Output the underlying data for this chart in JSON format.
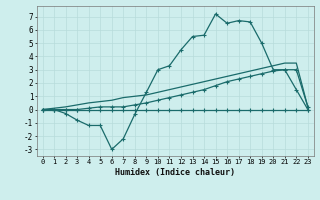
{
  "xlabel": "Humidex (Indice chaleur)",
  "bg_color": "#ceeeed",
  "grid_color": "#b8dcdb",
  "line_color": "#1a6b6b",
  "x_values": [
    0,
    1,
    2,
    3,
    4,
    5,
    6,
    7,
    8,
    9,
    10,
    11,
    12,
    13,
    14,
    15,
    16,
    17,
    18,
    19,
    20,
    21,
    22,
    23
  ],
  "line1_y": [
    0.0,
    0.0,
    -0.3,
    -0.8,
    -1.2,
    -1.2,
    -3.0,
    -2.2,
    -0.35,
    1.3,
    3.0,
    3.3,
    4.5,
    5.5,
    5.6,
    7.2,
    6.5,
    6.7,
    6.6,
    5.0,
    3.0,
    3.0,
    1.5,
    0.0
  ],
  "line2_y": [
    0.0,
    0.0,
    0.0,
    0.0,
    0.0,
    0.0,
    0.0,
    0.0,
    0.0,
    0.0,
    0.0,
    0.0,
    0.0,
    0.0,
    0.0,
    0.0,
    0.0,
    0.0,
    0.0,
    0.0,
    0.0,
    0.0,
    0.0,
    0.0
  ],
  "line3_y": [
    0.0,
    0.1,
    0.2,
    0.35,
    0.5,
    0.6,
    0.7,
    0.9,
    1.0,
    1.1,
    1.3,
    1.5,
    1.7,
    1.9,
    2.1,
    2.3,
    2.5,
    2.7,
    2.9,
    3.1,
    3.3,
    3.5,
    3.5,
    0.2
  ],
  "line4_y": [
    0.0,
    0.0,
    0.0,
    0.0,
    0.1,
    0.2,
    0.2,
    0.2,
    0.35,
    0.5,
    0.7,
    0.9,
    1.1,
    1.3,
    1.5,
    1.8,
    2.1,
    2.3,
    2.5,
    2.7,
    2.9,
    3.0,
    3.0,
    0.2
  ],
  "xlim": [
    -0.5,
    23.5
  ],
  "ylim": [
    -3.5,
    7.8
  ],
  "yticks": [
    -3,
    -2,
    -1,
    0,
    1,
    2,
    3,
    4,
    5,
    6,
    7
  ],
  "xticks": [
    0,
    1,
    2,
    3,
    4,
    5,
    6,
    7,
    8,
    9,
    10,
    11,
    12,
    13,
    14,
    15,
    16,
    17,
    18,
    19,
    20,
    21,
    22,
    23
  ]
}
